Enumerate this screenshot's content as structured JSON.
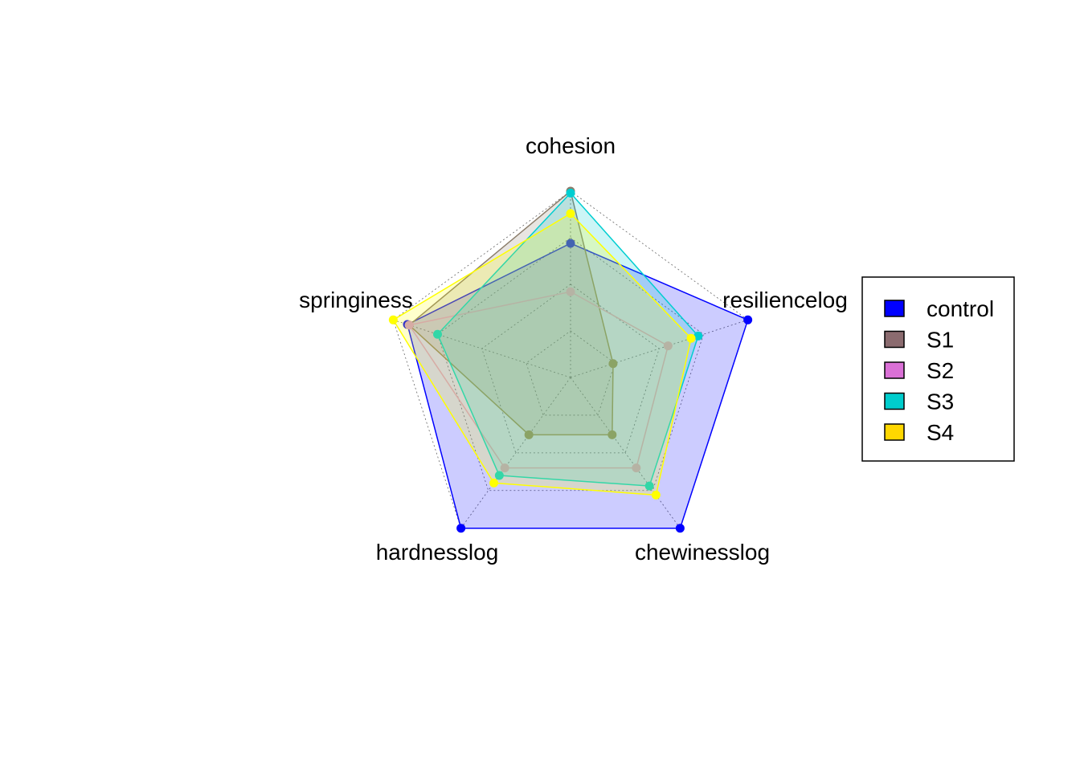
{
  "chart_data": {
    "type": "radar",
    "title": "",
    "axes": [
      "cohesion",
      "resiliencelog",
      "chewinesslog",
      "hardnesslog",
      "springiness"
    ],
    "range": [
      0,
      1
    ],
    "grid_levels": [
      0.25,
      0.5,
      0.75,
      1.0
    ],
    "grid": true,
    "legend_position": "right",
    "series": [
      {
        "name": "control",
        "color": "#0000FF",
        "legend_color": "#0000FF",
        "fill": true,
        "values": [
          0.72,
          1.0,
          1.0,
          1.0,
          0.92
        ]
      },
      {
        "name": "S1",
        "color": "#8B7D6B",
        "legend_color": "#8B6B6F",
        "fill": true,
        "values": [
          1.0,
          0.24,
          0.38,
          0.38,
          0.91
        ]
      },
      {
        "name": "S2",
        "color": "#CD96CD",
        "legend_color": "#DA70D6",
        "fill": false,
        "values": [
          0.46,
          0.55,
          0.6,
          0.6,
          0.91
        ]
      },
      {
        "name": "S3",
        "color": "#00CED1",
        "legend_color": "#00CDCD",
        "fill": true,
        "values": [
          0.99,
          0.72,
          0.72,
          0.65,
          0.75
        ]
      },
      {
        "name": "S4",
        "color": "#FFFF00",
        "legend_color": "#FFD700",
        "fill": true,
        "values": [
          0.88,
          0.68,
          0.78,
          0.7,
          1.0
        ]
      }
    ]
  }
}
